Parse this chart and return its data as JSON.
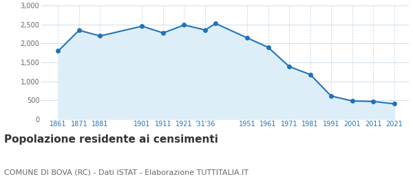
{
  "years": [
    1861,
    1871,
    1881,
    1901,
    1911,
    1921,
    1931,
    1936,
    1951,
    1961,
    1971,
    1981,
    1991,
    2001,
    2011,
    2021
  ],
  "population": [
    1800,
    2350,
    2200,
    2460,
    2280,
    2490,
    2360,
    2530,
    2150,
    1900,
    1390,
    1180,
    610,
    480,
    465,
    405
  ],
  "line_color": "#2272b5",
  "fill_color": "#ddeef8",
  "marker_color": "#2272b5",
  "background_color": "#ffffff",
  "grid_color_h": "#c8d8e8",
  "grid_color_v": "#c8d8e8",
  "tick_color": "#2272b5",
  "ytick_color": "#666666",
  "title": "Popolazione residente ai censimenti",
  "subtitle": "COMUNE DI BOVA (RC) - Dati ISTAT - Elaborazione TUTTITALIA.IT",
  "title_fontsize": 11,
  "subtitle_fontsize": 8,
  "ylim": [
    0,
    3000
  ],
  "yticks": [
    0,
    500,
    1000,
    1500,
    2000,
    2500,
    3000
  ],
  "ylabel_ticks": [
    "0",
    "500",
    "1,000",
    "1,500",
    "2,000",
    "2,500",
    "3,000"
  ],
  "x_tick_positions": [
    1861,
    1871,
    1881,
    1901,
    1911,
    1921,
    1931,
    1951,
    1961,
    1971,
    1981,
    1991,
    2001,
    2011,
    2021
  ],
  "x_tick_labels": [
    "1861",
    "1871",
    "1881",
    "1901",
    "1911",
    "1921",
    "'31'36",
    "1951",
    "1961",
    "1971",
    "1981",
    "1991",
    "2001",
    "2011",
    "2021"
  ],
  "xlim_left": 1853,
  "xlim_right": 2028
}
